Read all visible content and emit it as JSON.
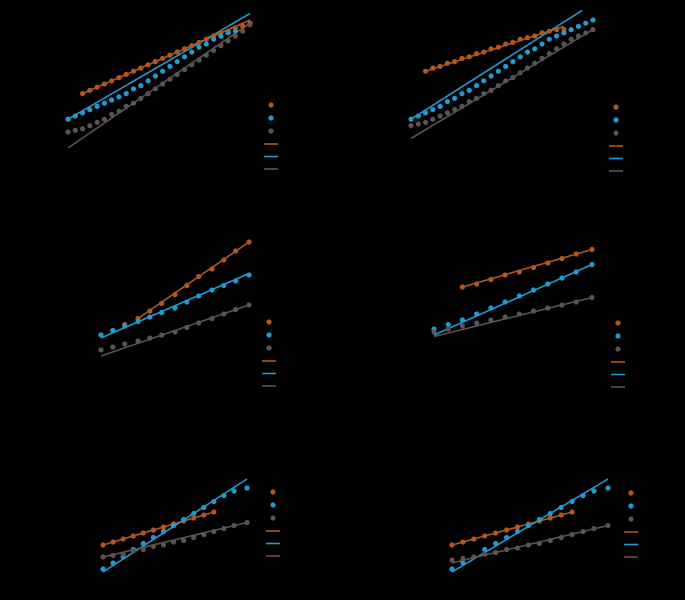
{
  "figure": {
    "background": "#000000",
    "colors": {
      "orange": "#b5561a",
      "blue": "#1e9bd1",
      "gray": "#5c5350"
    }
  },
  "chart_data": [
    {
      "type": "scatter",
      "legend": "right",
      "xlim": [
        0,
        1
      ],
      "ylim": [
        0,
        1
      ],
      "series": [
        {
          "color": "#b5561a",
          "x": [
            0.08,
            0.12,
            0.16,
            0.2,
            0.24,
            0.28,
            0.32,
            0.36,
            0.4,
            0.44,
            0.48,
            0.52,
            0.56,
            0.6,
            0.64,
            0.68,
            0.72,
            0.76,
            0.8,
            0.84,
            0.88,
            0.92,
            0.96,
            1.0
          ],
          "y": [
            0.54,
            0.56,
            0.58,
            0.6,
            0.62,
            0.64,
            0.66,
            0.68,
            0.7,
            0.72,
            0.74,
            0.76,
            0.78,
            0.8,
            0.82,
            0.84,
            0.86,
            0.88,
            0.9,
            0.92,
            0.93,
            0.95,
            0.96,
            0.98
          ]
        },
        {
          "color": "#1e9bd1",
          "x": [
            0.0,
            0.04,
            0.08,
            0.12,
            0.16,
            0.2,
            0.24,
            0.28,
            0.32,
            0.36,
            0.4,
            0.44,
            0.48,
            0.52,
            0.56,
            0.6,
            0.64,
            0.68,
            0.72,
            0.76,
            0.8,
            0.84,
            0.88,
            0.92
          ],
          "y": [
            0.38,
            0.4,
            0.42,
            0.44,
            0.46,
            0.48,
            0.5,
            0.52,
            0.54,
            0.57,
            0.59,
            0.62,
            0.65,
            0.68,
            0.71,
            0.74,
            0.77,
            0.8,
            0.83,
            0.85,
            0.88,
            0.9,
            0.92,
            0.93
          ]
        },
        {
          "color": "#5c5350",
          "x": [
            0.0,
            0.04,
            0.08,
            0.12,
            0.16,
            0.2,
            0.24,
            0.28,
            0.32,
            0.36,
            0.4,
            0.44,
            0.48,
            0.52,
            0.56,
            0.6,
            0.64,
            0.68,
            0.72,
            0.76,
            0.8,
            0.84,
            0.88,
            0.92,
            0.96,
            1.0
          ],
          "y": [
            0.3,
            0.31,
            0.32,
            0.34,
            0.36,
            0.38,
            0.41,
            0.43,
            0.46,
            0.48,
            0.51,
            0.54,
            0.57,
            0.6,
            0.63,
            0.66,
            0.69,
            0.72,
            0.75,
            0.78,
            0.81,
            0.84,
            0.87,
            0.9,
            0.93,
            0.97
          ]
        }
      ],
      "fits": [
        {
          "color": "#b5561a",
          "x": [
            0.08,
            1.0
          ],
          "y": [
            0.54,
            1.0
          ]
        },
        {
          "color": "#1e9bd1",
          "x": [
            0.0,
            1.0
          ],
          "y": [
            0.38,
            1.04
          ]
        },
        {
          "color": "#5c5350",
          "x": [
            0.0,
            1.0
          ],
          "y": [
            0.2,
            0.98
          ]
        }
      ]
    },
    {
      "type": "scatter",
      "legend": "right",
      "xlim": [
        0,
        1
      ],
      "ylim": [
        0,
        1
      ],
      "series": [
        {
          "color": "#b5561a",
          "x": [
            0.08,
            0.12,
            0.16,
            0.2,
            0.24,
            0.28,
            0.32,
            0.36,
            0.4,
            0.44,
            0.48,
            0.52,
            0.56,
            0.6,
            0.64,
            0.68,
            0.72,
            0.76,
            0.8,
            0.84
          ],
          "y": [
            0.68,
            0.7,
            0.71,
            0.73,
            0.74,
            0.76,
            0.77,
            0.79,
            0.8,
            0.82,
            0.83,
            0.85,
            0.86,
            0.88,
            0.89,
            0.9,
            0.92,
            0.93,
            0.94,
            0.94
          ]
        },
        {
          "color": "#1e9bd1",
          "x": [
            0.0,
            0.04,
            0.08,
            0.12,
            0.16,
            0.2,
            0.24,
            0.28,
            0.32,
            0.36,
            0.4,
            0.44,
            0.48,
            0.52,
            0.56,
            0.6,
            0.64,
            0.68,
            0.72,
            0.76,
            0.8,
            0.84,
            0.88,
            0.92,
            0.96,
            1.0
          ],
          "y": [
            0.38,
            0.4,
            0.42,
            0.44,
            0.46,
            0.49,
            0.51,
            0.54,
            0.56,
            0.59,
            0.62,
            0.65,
            0.68,
            0.71,
            0.74,
            0.77,
            0.8,
            0.82,
            0.85,
            0.88,
            0.9,
            0.92,
            0.94,
            0.96,
            0.98,
            1.0
          ]
        },
        {
          "color": "#5c5350",
          "x": [
            0.0,
            0.04,
            0.08,
            0.12,
            0.16,
            0.2,
            0.24,
            0.28,
            0.32,
            0.36,
            0.4,
            0.44,
            0.48,
            0.52,
            0.56,
            0.6,
            0.64,
            0.68,
            0.72,
            0.76,
            0.8,
            0.84,
            0.88,
            0.92,
            0.96,
            1.0
          ],
          "y": [
            0.34,
            0.35,
            0.36,
            0.38,
            0.4,
            0.42,
            0.44,
            0.46,
            0.49,
            0.51,
            0.54,
            0.56,
            0.59,
            0.62,
            0.64,
            0.67,
            0.7,
            0.73,
            0.76,
            0.79,
            0.82,
            0.85,
            0.88,
            0.9,
            0.92,
            0.94
          ]
        }
      ],
      "fits": [
        {
          "color": "#b5561a",
          "x": [
            0.08,
            0.84
          ],
          "y": [
            0.68,
            0.96
          ]
        },
        {
          "color": "#1e9bd1",
          "x": [
            0.0,
            0.94
          ],
          "y": [
            0.38,
            1.06
          ]
        },
        {
          "color": "#5c5350",
          "x": [
            0.0,
            1.0
          ],
          "y": [
            0.26,
            0.94
          ]
        }
      ]
    },
    {
      "type": "scatter",
      "legend": "right",
      "xlim": [
        0,
        1
      ],
      "ylim": [
        0,
        1
      ],
      "series": [
        {
          "color": "#b5561a",
          "x": [
            0.0,
            0.08,
            0.16,
            0.25,
            0.33,
            0.41,
            0.5,
            0.58,
            0.66,
            0.75,
            0.83,
            0.91,
            1.0
          ],
          "y": [
            0.3,
            0.33,
            0.37,
            0.41,
            0.46,
            0.51,
            0.57,
            0.63,
            0.69,
            0.74,
            0.8,
            0.86,
            0.92
          ]
        },
        {
          "color": "#1e9bd1",
          "x": [
            0.0,
            0.08,
            0.16,
            0.25,
            0.33,
            0.41,
            0.5,
            0.58,
            0.66,
            0.75,
            0.83,
            0.91,
            1.0
          ],
          "y": [
            0.3,
            0.33,
            0.36,
            0.39,
            0.42,
            0.45,
            0.48,
            0.52,
            0.56,
            0.6,
            0.63,
            0.66,
            0.7
          ]
        },
        {
          "color": "#5c5350",
          "x": [
            0.0,
            0.08,
            0.16,
            0.25,
            0.33,
            0.41,
            0.5,
            0.58,
            0.66,
            0.75,
            0.83,
            0.91,
            1.0
          ],
          "y": [
            0.2,
            0.22,
            0.24,
            0.26,
            0.28,
            0.3,
            0.32,
            0.35,
            0.38,
            0.41,
            0.44,
            0.47,
            0.5
          ]
        }
      ],
      "fits": [
        {
          "color": "#b5561a",
          "x": [
            0.25,
            1.0
          ],
          "y": [
            0.41,
            0.92
          ]
        },
        {
          "color": "#1e9bd1",
          "x": [
            0.0,
            1.0
          ],
          "y": [
            0.28,
            0.71
          ]
        },
        {
          "color": "#5c5350",
          "x": [
            0.0,
            1.0
          ],
          "y": [
            0.16,
            0.5
          ]
        }
      ]
    },
    {
      "type": "scatter",
      "legend": "right",
      "xlim": [
        0,
        1
      ],
      "ylim": [
        0,
        1
      ],
      "series": [
        {
          "color": "#b5561a",
          "x": [
            0.18,
            0.27,
            0.36,
            0.45,
            0.54,
            0.63,
            0.72,
            0.81,
            0.9,
            1.0
          ],
          "y": [
            0.62,
            0.64,
            0.67,
            0.7,
            0.72,
            0.75,
            0.78,
            0.81,
            0.84,
            0.87
          ]
        },
        {
          "color": "#1e9bd1",
          "x": [
            0.0,
            0.09,
            0.18,
            0.27,
            0.36,
            0.45,
            0.54,
            0.63,
            0.72,
            0.81,
            0.9,
            1.0
          ],
          "y": [
            0.34,
            0.37,
            0.4,
            0.44,
            0.48,
            0.52,
            0.56,
            0.6,
            0.64,
            0.68,
            0.72,
            0.77
          ]
        },
        {
          "color": "#5c5350",
          "x": [
            0.0,
            0.09,
            0.18,
            0.27,
            0.36,
            0.45,
            0.54,
            0.63,
            0.72,
            0.81,
            0.9,
            1.0
          ],
          "y": [
            0.32,
            0.34,
            0.36,
            0.38,
            0.4,
            0.42,
            0.44,
            0.46,
            0.48,
            0.5,
            0.52,
            0.55
          ]
        }
      ],
      "fits": [
        {
          "color": "#b5561a",
          "x": [
            0.18,
            1.0
          ],
          "y": [
            0.62,
            0.87
          ]
        },
        {
          "color": "#1e9bd1",
          "x": [
            0.0,
            1.0
          ],
          "y": [
            0.3,
            0.77
          ]
        },
        {
          "color": "#5c5350",
          "x": [
            0.0,
            1.0
          ],
          "y": [
            0.29,
            0.55
          ]
        }
      ]
    },
    {
      "type": "scatter",
      "legend": "right",
      "xlim": [
        0,
        1
      ],
      "ylim": [
        0,
        1
      ],
      "series": [
        {
          "color": "#b5561a",
          "x": [
            0.0,
            0.07,
            0.14,
            0.21,
            0.28,
            0.35,
            0.42,
            0.49,
            0.56,
            0.63,
            0.7,
            0.77
          ],
          "y": [
            0.3,
            0.32,
            0.34,
            0.36,
            0.38,
            0.4,
            0.42,
            0.44,
            0.46,
            0.48,
            0.5,
            0.52
          ]
        },
        {
          "color": "#1e9bd1",
          "x": [
            0.0,
            0.07,
            0.14,
            0.21,
            0.28,
            0.35,
            0.42,
            0.49,
            0.56,
            0.63,
            0.7,
            0.77,
            0.84,
            0.91,
            1.0
          ],
          "y": [
            0.14,
            0.18,
            0.22,
            0.27,
            0.31,
            0.35,
            0.39,
            0.43,
            0.47,
            0.51,
            0.55,
            0.59,
            0.63,
            0.66,
            0.68
          ]
        },
        {
          "color": "#5c5350",
          "x": [
            0.0,
            0.07,
            0.14,
            0.21,
            0.28,
            0.35,
            0.42,
            0.49,
            0.56,
            0.63,
            0.7,
            0.77,
            0.84,
            0.91,
            1.0
          ],
          "y": [
            0.22,
            0.23,
            0.24,
            0.26,
            0.27,
            0.29,
            0.3,
            0.32,
            0.33,
            0.35,
            0.37,
            0.39,
            0.41,
            0.43,
            0.45
          ]
        }
      ],
      "fits": [
        {
          "color": "#b5561a",
          "x": [
            0.0,
            0.77
          ],
          "y": [
            0.3,
            0.52
          ]
        },
        {
          "color": "#1e9bd1",
          "x": [
            0.0,
            1.0
          ],
          "y": [
            0.12,
            0.74
          ]
        },
        {
          "color": "#5c5350",
          "x": [
            0.0,
            1.0
          ],
          "y": [
            0.22,
            0.45
          ]
        }
      ]
    },
    {
      "type": "scatter",
      "legend": "right",
      "xlim": [
        0,
        1
      ],
      "ylim": [
        0,
        1
      ],
      "series": [
        {
          "color": "#b5561a",
          "x": [
            0.0,
            0.07,
            0.14,
            0.21,
            0.28,
            0.35,
            0.42,
            0.49,
            0.56,
            0.63,
            0.7,
            0.77
          ],
          "y": [
            0.3,
            0.32,
            0.34,
            0.36,
            0.38,
            0.4,
            0.42,
            0.44,
            0.46,
            0.48,
            0.5,
            0.52
          ]
        },
        {
          "color": "#1e9bd1",
          "x": [
            0.0,
            0.07,
            0.14,
            0.21,
            0.28,
            0.35,
            0.42,
            0.49,
            0.56,
            0.63,
            0.7,
            0.77,
            0.84,
            0.91,
            1.0
          ],
          "y": [
            0.14,
            0.18,
            0.22,
            0.27,
            0.31,
            0.35,
            0.39,
            0.43,
            0.47,
            0.51,
            0.55,
            0.59,
            0.63,
            0.66,
            0.68
          ]
        },
        {
          "color": "#5c5350",
          "x": [
            0.0,
            0.07,
            0.14,
            0.21,
            0.28,
            0.35,
            0.42,
            0.49,
            0.56,
            0.63,
            0.7,
            0.77,
            0.84,
            0.91,
            1.0
          ],
          "y": [
            0.2,
            0.21,
            0.22,
            0.24,
            0.25,
            0.27,
            0.28,
            0.3,
            0.31,
            0.33,
            0.35,
            0.37,
            0.39,
            0.41,
            0.43
          ]
        }
      ],
      "fits": [
        {
          "color": "#b5561a",
          "x": [
            0.0,
            0.77
          ],
          "y": [
            0.3,
            0.52
          ]
        },
        {
          "color": "#1e9bd1",
          "x": [
            0.0,
            1.0
          ],
          "y": [
            0.12,
            0.74
          ]
        },
        {
          "color": "#5c5350",
          "x": [
            0.0,
            1.0
          ],
          "y": [
            0.18,
            0.43
          ]
        }
      ]
    }
  ]
}
